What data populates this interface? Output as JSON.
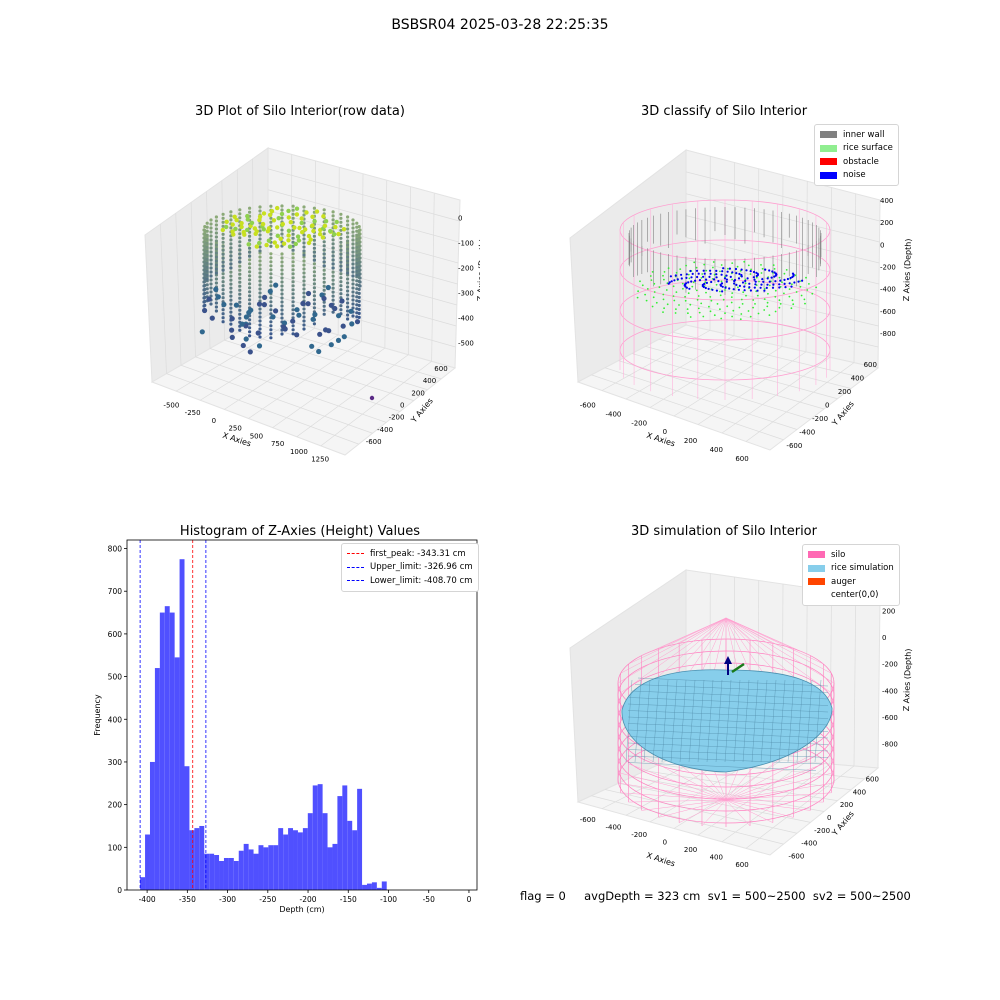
{
  "suptitle": "BSBSR04 2025-03-28 22:25:35",
  "panels": {
    "raw": {
      "title": "3D Plot of Silo Interior(row data)",
      "xlabel": "X Axies",
      "ylabel": "Y Axies",
      "zlabel": "Z Axies (Depth)",
      "xticks": [
        "-500",
        "-250",
        "0",
        "250",
        "500",
        "750",
        "1000",
        "1250"
      ],
      "yticks": [
        "600",
        "400",
        "200",
        "0",
        "-200",
        "-400",
        "-600"
      ],
      "zticks": [
        "0",
        "-100",
        "-200",
        "-300",
        "-400",
        "-500"
      ]
    },
    "classify": {
      "title": "3D classify of Silo Interior",
      "xlabel": "X Axies",
      "ylabel": "Y Axies",
      "zlabel": "Z Axies (Depth)",
      "xticks": [
        "-600",
        "-400",
        "-200",
        "0",
        "200",
        "400",
        "600"
      ],
      "yticks": [
        "600",
        "400",
        "200",
        "0",
        "-200",
        "-400",
        "-600"
      ],
      "zticks": [
        "400",
        "200",
        "0",
        "-200",
        "-400",
        "-600",
        "-800"
      ],
      "legend": [
        {
          "label": "inner wall",
          "color": "#808080"
        },
        {
          "label": "rice surface",
          "color": "#90ee90"
        },
        {
          "label": "obstacle",
          "color": "#ff0000"
        },
        {
          "label": "noise",
          "color": "#0000ff"
        }
      ]
    },
    "simulation": {
      "title": "3D simulation of Silo Interior",
      "xlabel": "X Axies",
      "ylabel": "Y Axies",
      "zlabel": "Z Axies (Depth)",
      "xticks": [
        "-600",
        "-400",
        "-200",
        "0",
        "200",
        "400",
        "600"
      ],
      "yticks": [
        "600",
        "400",
        "200",
        "0",
        "-200",
        "-400",
        "-600"
      ],
      "zticks": [
        "200",
        "0",
        "-200",
        "-400",
        "-600",
        "-800"
      ],
      "legend": [
        {
          "label": "silo",
          "color": "#ff69b4"
        },
        {
          "label": "rice simulation",
          "color": "#87ceeb"
        },
        {
          "label": "auger",
          "color": "#ff4500"
        },
        {
          "label": "center(0,0)",
          "color": ""
        }
      ]
    }
  },
  "status_line": "flag = 0     avgDepth = 323 cm  sv1 = 500~2500  sv2 = 500~2500",
  "chart_data": {
    "type": "bar",
    "title": "Histogram of Z-Axies (Height) Values",
    "xlabel": "Depth (cm)",
    "ylabel": "Frequency",
    "xlim": [
      -425,
      10
    ],
    "ylim": [
      0,
      820
    ],
    "xticks": [
      -400,
      -350,
      -300,
      -250,
      -200,
      -150,
      -100,
      -50,
      0
    ],
    "yticks": [
      0,
      100,
      200,
      300,
      400,
      500,
      600,
      700,
      800
    ],
    "bar_color": "#5050ff",
    "bin_edges_start": -408.7,
    "bin_width": 6.13,
    "values": [
      30,
      130,
      300,
      520,
      650,
      665,
      650,
      545,
      775,
      290,
      140,
      145,
      150,
      85,
      85,
      82,
      68,
      75,
      75,
      68,
      92,
      108,
      95,
      85,
      105,
      100,
      105,
      105,
      145,
      130,
      145,
      140,
      135,
      145,
      180,
      245,
      248,
      180,
      100,
      108,
      220,
      245,
      162,
      140,
      237,
      12,
      15,
      18,
      5,
      20
    ],
    "vlines": [
      {
        "label": "first_peak: -343.31 cm",
        "x": -343.31,
        "color": "#ff0000"
      },
      {
        "label": "Upper_limit: -326.96 cm",
        "x": -326.96,
        "color": "#0000ff"
      },
      {
        "label": "Lower_limit: -408.70 cm",
        "x": -408.7,
        "color": "#0000ff"
      }
    ]
  }
}
